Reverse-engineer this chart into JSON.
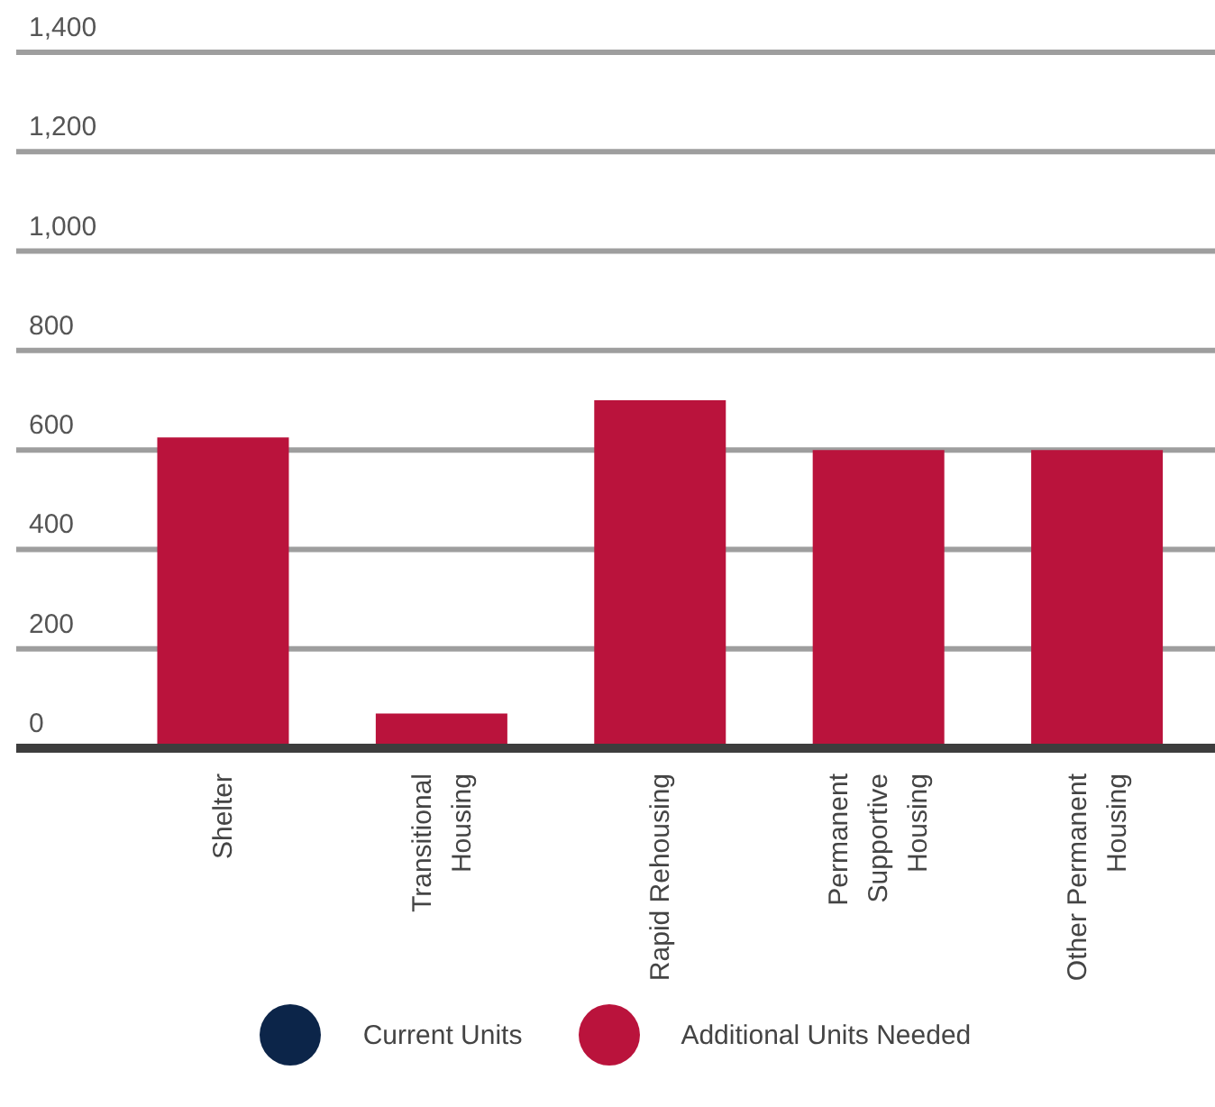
{
  "chart_data": {
    "type": "bar",
    "stacked": true,
    "categories": [
      "Shelter",
      "Transitional Housing",
      "Rapid Rehousing",
      "Permanent Supportive Housing",
      "Other Permanent Housing"
    ],
    "series": [
      {
        "name": "Current Units",
        "color": "#0c2549",
        "values": [
          null,
          null,
          null,
          null,
          null
        ]
      },
      {
        "name": "Additional Units Needed",
        "color": "#ba133c",
        "values": [
          625,
          70,
          700,
          600,
          600
        ]
      }
    ],
    "ylim": [
      0,
      1400
    ],
    "yticks": [
      0,
      {
        "value": 200,
        "label": "200"
      },
      {
        "value": 400,
        "label": "400"
      },
      {
        "value": 600,
        "label": "600"
      },
      {
        "value": 800,
        "label": "800"
      },
      {
        "value": 1000,
        "label": "1,000"
      },
      {
        "value": 1200,
        "label": "1,200"
      },
      {
        "value": 1400,
        "label": "1,400"
      }
    ],
    "grid": "y",
    "legend": "bottom"
  }
}
